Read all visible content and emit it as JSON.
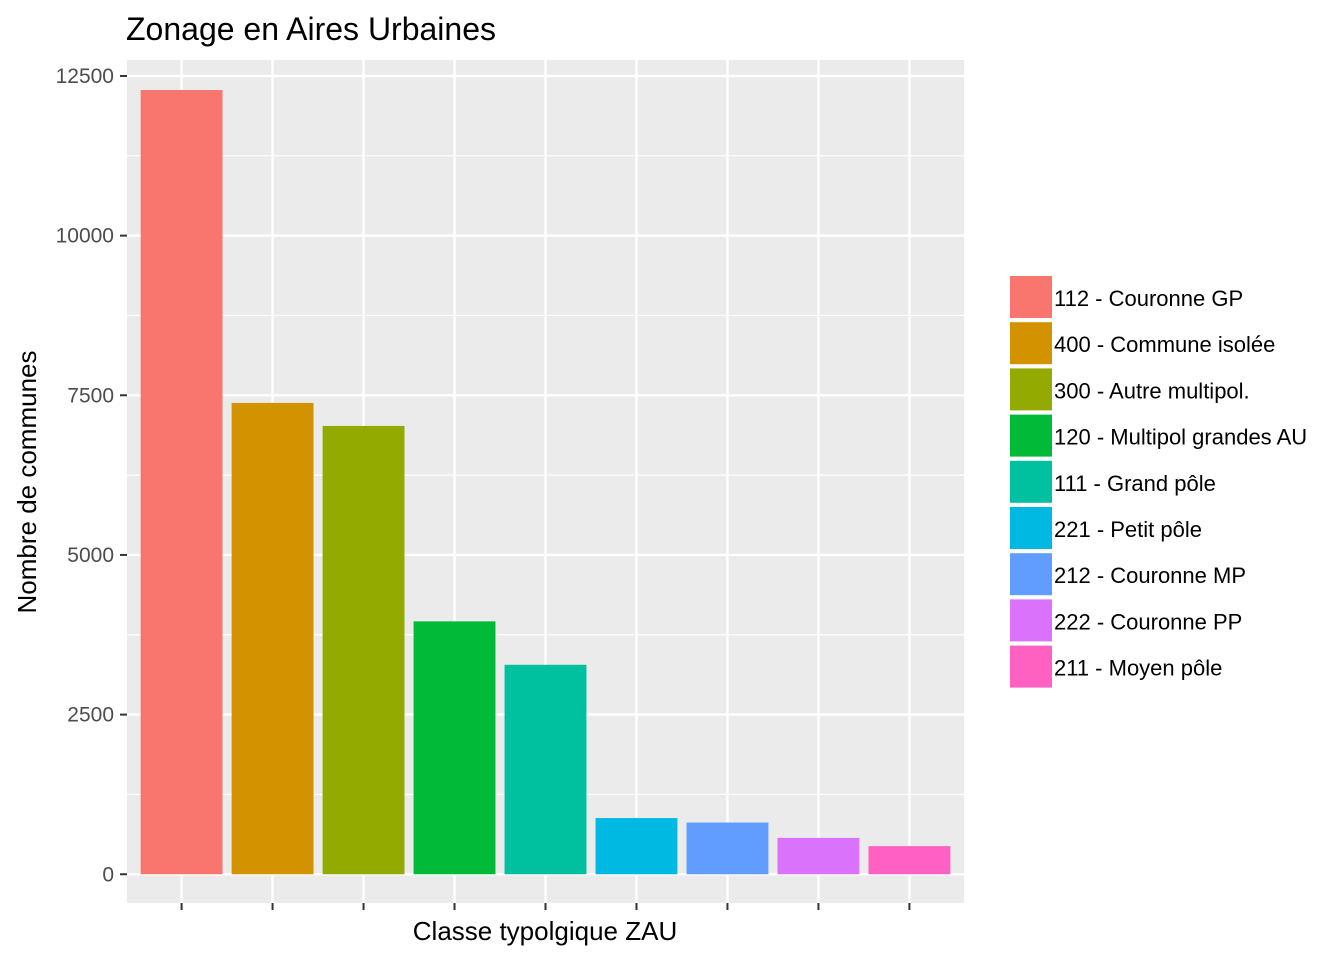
{
  "chart_data": {
    "type": "bar",
    "title": "Zonage en Aires Urbaines",
    "xlabel": "Classe typolgique ZAU",
    "ylabel": "Nombre de communes",
    "ylim": [
      -450,
      12750
    ],
    "yticks": [
      0,
      2500,
      5000,
      7500,
      10000,
      12500
    ],
    "ytick_labels": [
      "0",
      "2500",
      "5000",
      "7500",
      "10000",
      "12500"
    ],
    "grid": true,
    "legend_position": "right",
    "categories": [
      "112 - Couronne GP",
      "400 - Commune isolée",
      "300 - Autre multipol.",
      "120 - Multipol grandes AU",
      "111 - Grand pôle",
      "221 - Petit pôle",
      "212 - Couronne MP",
      "222 - Couronne PP",
      "211 - Moyen pôle"
    ],
    "values": [
      12280,
      7380,
      7020,
      3960,
      3280,
      880,
      810,
      570,
      440
    ],
    "colors": [
      "#F8766D",
      "#D39200",
      "#93AA00",
      "#00BA38",
      "#00C19F",
      "#00B9E3",
      "#619CFF",
      "#DB72FB",
      "#FF61C3"
    ]
  }
}
